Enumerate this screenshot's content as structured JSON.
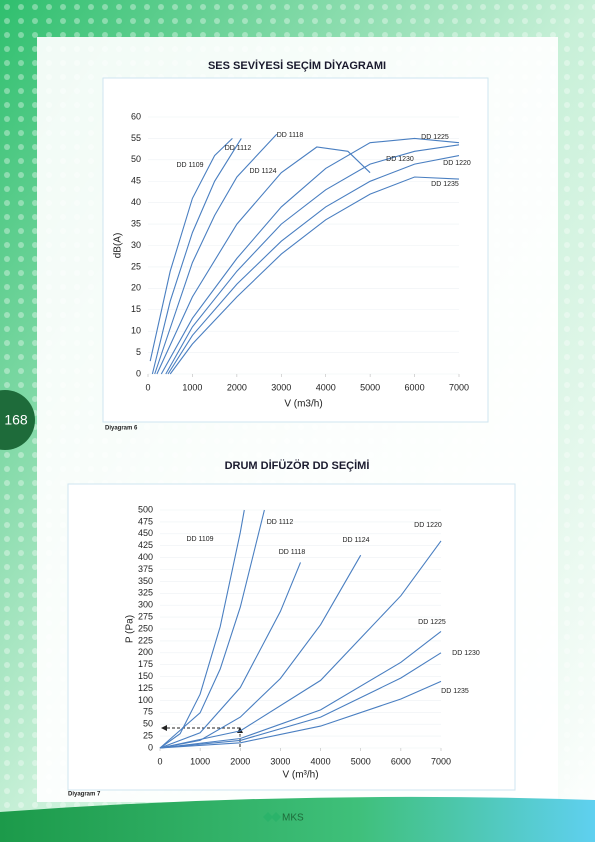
{
  "page_number": "168",
  "logo": "MKS",
  "chart_data": [
    {
      "type": "line",
      "title": "SES SEVİYESİ SEÇİM DİYAGRAMI",
      "caption": "Diyagram 6",
      "xlabel": "V (m3/h)",
      "ylabel": "dB(A)",
      "xlim": [
        0,
        7000
      ],
      "ylim": [
        0,
        60
      ],
      "xticks": [
        0,
        1000,
        2000,
        3000,
        4000,
        5000,
        6000,
        7000
      ],
      "yticks": [
        0,
        5,
        10,
        15,
        20,
        25,
        30,
        35,
        40,
        45,
        50,
        55,
        60
      ],
      "grid": true,
      "series": [
        {
          "name": "DD 1109",
          "color": "#4a7fc1",
          "x": [
            50,
            500,
            1000,
            1500,
            1900
          ],
          "values": [
            3,
            24,
            41,
            51,
            55
          ]
        },
        {
          "name": "DD 1112",
          "color": "#4a7fc1",
          "x": [
            100,
            500,
            1000,
            1500,
            2100
          ],
          "values": [
            0,
            17,
            33,
            45,
            55
          ]
        },
        {
          "name": "DD 1118",
          "color": "#4a7fc1",
          "x": [
            150,
            1000,
            1500,
            2000,
            2900
          ],
          "values": [
            0,
            26,
            37,
            46,
            56
          ]
        },
        {
          "name": "DD 1124",
          "color": "#4a7fc1",
          "x": [
            200,
            1000,
            2000,
            3000,
            3800,
            4500,
            5000
          ],
          "values": [
            0,
            18,
            35,
            47,
            53,
            52,
            47
          ]
        },
        {
          "name": "DD 1225",
          "color": "#4a7fc1",
          "x": [
            300,
            1000,
            2000,
            3000,
            4000,
            5000,
            6000,
            7000
          ],
          "values": [
            0,
            13,
            27,
            39,
            48,
            54,
            55,
            54
          ]
        },
        {
          "name": "DD 1220",
          "color": "#4a7fc1",
          "x": [
            400,
            1000,
            2000,
            3000,
            4000,
            5000,
            6000,
            7000
          ],
          "values": [
            0,
            11,
            24,
            35,
            43,
            49,
            52,
            53.5
          ]
        },
        {
          "name": "DD 1230",
          "color": "#4a7fc1",
          "x": [
            450,
            1000,
            2000,
            3000,
            4000,
            5000,
            6000,
            7000
          ],
          "values": [
            0,
            9,
            21,
            31,
            39,
            45,
            49,
            51
          ]
        },
        {
          "name": "DD 1235",
          "color": "#4a7fc1",
          "x": [
            500,
            1000,
            2000,
            3000,
            4000,
            5000,
            6000,
            7000
          ],
          "values": [
            0,
            7,
            18,
            28,
            36,
            42,
            46,
            45.5
          ]
        }
      ]
    },
    {
      "type": "line",
      "title": "DRUM DİFÜZÖR DD SEÇİMİ",
      "caption": "Diyagram 7",
      "xlabel": "V (m³/h)",
      "ylabel": "P (Pa)",
      "xlim": [
        0,
        7000
      ],
      "ylim": [
        0,
        500
      ],
      "xticks": [
        0,
        1000,
        2000,
        3000,
        4000,
        5000,
        6000,
        7000
      ],
      "yticks": [
        0,
        25,
        50,
        75,
        100,
        125,
        150,
        175,
        200,
        225,
        250,
        275,
        300,
        325,
        350,
        375,
        400,
        425,
        450,
        475,
        500
      ],
      "grid": true,
      "series": [
        {
          "name": "DD 1109",
          "color": "#4a7fc1",
          "x": [
            0,
            500,
            1000,
            1500,
            2000,
            2100
          ],
          "values": [
            0,
            30,
            113,
            255,
            453,
            500
          ]
        },
        {
          "name": "DD 1112",
          "color": "#4a7fc1",
          "x": [
            0,
            1000,
            1500,
            2000,
            2600
          ],
          "values": [
            0,
            74,
            166,
            296,
            500
          ]
        },
        {
          "name": "DD 1118",
          "color": "#4a7fc1",
          "x": [
            0,
            1000,
            2000,
            3000,
            3500
          ],
          "values": [
            0,
            32,
            127,
            287,
            390
          ]
        },
        {
          "name": "DD 1124",
          "color": "#4a7fc1",
          "x": [
            0,
            1000,
            2000,
            3000,
            4000,
            5000
          ],
          "values": [
            0,
            16,
            65,
            146,
            259,
            405
          ]
        },
        {
          "name": "DD 1220",
          "color": "#4a7fc1",
          "x": [
            0,
            2000,
            4000,
            6000,
            7000
          ],
          "values": [
            0,
            36,
            142,
            320,
            435
          ]
        },
        {
          "name": "DD 1225",
          "color": "#4a7fc1",
          "x": [
            0,
            2000,
            4000,
            6000,
            7000
          ],
          "values": [
            0,
            20,
            80,
            180,
            245
          ]
        },
        {
          "name": "DD 1230",
          "color": "#4a7fc1",
          "x": [
            0,
            2000,
            4000,
            6000,
            7000
          ],
          "values": [
            0,
            16,
            65,
            147,
            200
          ]
        },
        {
          "name": "DD 1235",
          "color": "#4a7fc1",
          "x": [
            0,
            2000,
            4000,
            6000,
            7000
          ],
          "values": [
            0,
            11,
            46,
            103,
            140
          ]
        }
      ]
    }
  ]
}
